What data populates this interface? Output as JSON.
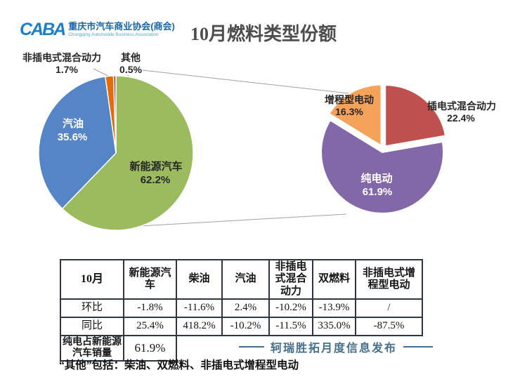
{
  "header": {
    "logo": {
      "acronym": "CABA",
      "name_cn": "重庆市汽车商业协会(商会)",
      "name_en": "Chongqing Automobile Business Association"
    },
    "title": "10月燃料类型份额"
  },
  "chart_data": [
    {
      "type": "pie",
      "name": "october-fuel-type-share",
      "start": "top",
      "direction": "clockwise",
      "exploded": false,
      "slices": [
        {
          "label": "新能源汽车",
          "value": 62.2,
          "pct_text": "62.2%",
          "color": "#9cbb5f"
        },
        {
          "label": "汽油",
          "value": 35.6,
          "pct_text": "35.6%",
          "color": "#5585c6"
        },
        {
          "label": "非插电式混合动力",
          "value": 1.7,
          "pct_text": "1.7%",
          "color": "#e36c09"
        },
        {
          "label": "其他",
          "value": 0.5,
          "pct_text": "0.5%",
          "color": "#a8423a"
        }
      ]
    },
    {
      "type": "pie",
      "name": "nev-breakdown",
      "start": "top",
      "direction": "clockwise",
      "exploded": true,
      "slices": [
        {
          "label": "插电式混合动力",
          "value": 22.4,
          "pct_text": "22.4%",
          "color": "#c0504d"
        },
        {
          "label": "纯电动",
          "value": 61.9,
          "pct_text": "61.9%",
          "color": "#8268a9"
        },
        {
          "label": "增程型电动",
          "value": 16.3,
          "pct_text": "16.3%",
          "color": "#f5a25a"
        }
      ]
    }
  ],
  "table": {
    "month_header": "10月",
    "col_headers": [
      "新能源汽车",
      "柴油",
      "汽油",
      "非插电式混合动力",
      "双燃料",
      "非插电式增程型电动"
    ],
    "rows": [
      {
        "label": "环比",
        "cells": [
          "-1.8%",
          "-11.6%",
          "2.4%",
          "-10.2%",
          "-13.9%",
          "/"
        ]
      },
      {
        "label": "同比",
        "cells": [
          "25.4%",
          "418.2%",
          "-10.2%",
          "-11.5%",
          "335.0%",
          "-87.5%"
        ]
      }
    ],
    "summary_row": {
      "label": "纯电占新能源汽车销量",
      "value": "61.9%"
    }
  },
  "footer": {
    "publisher": "轲瑞胜拓月度信息发布"
  },
  "note": {
    "text": "“其他”包括：柴油、双燃料、非插电式增程型电动"
  }
}
